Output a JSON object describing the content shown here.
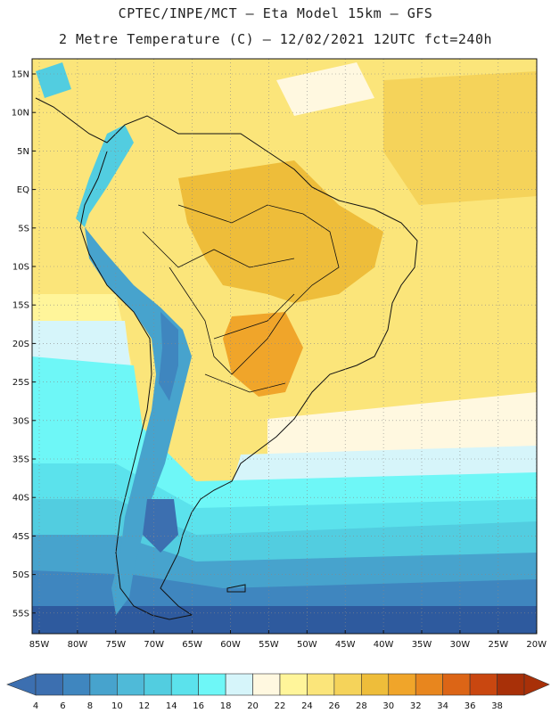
{
  "title_line1": "CPTEC/INPE/MCT –  Eta Model 15km – GFS",
  "title_line2": "2 Metre Temperature (C) – 12/02/2021 12UTC fct=240h",
  "lat_labels": [
    "15N",
    "10N",
    "5N",
    "EQ",
    "5S",
    "10S",
    "15S",
    "20S",
    "25S",
    "30S",
    "35S",
    "40S",
    "45S",
    "50S",
    "55S"
  ],
  "lon_labels": [
    "85W",
    "80W",
    "75W",
    "70W",
    "65W",
    "60W",
    "55W",
    "50W",
    "45W",
    "40W",
    "35W",
    "30W",
    "25W",
    "20W"
  ],
  "colorbar": {
    "ticks": [
      "4",
      "6",
      "8",
      "10",
      "12",
      "14",
      "16",
      "18",
      "20",
      "22",
      "24",
      "26",
      "28",
      "30",
      "32",
      "34",
      "36",
      "38"
    ],
    "colors": [
      "#3c6fb0",
      "#3f86bf",
      "#47a3cd",
      "#4fbad8",
      "#52cde0",
      "#5be2ec",
      "#6ef7f7",
      "#d6f5fa",
      "#fff8e0",
      "#fff59a",
      "#fbe57a",
      "#f5d35a",
      "#eebd3a",
      "#f0a52a",
      "#e8861e",
      "#dc6516",
      "#c94710",
      "#a83008"
    ]
  },
  "map": {
    "regions": {
      "ocean_south_deep": "#2e5a9e",
      "ocean_south_mid": "#3f86bf",
      "ocean_south": "#4fbad8",
      "ocean_cyan": "#5be2ec",
      "ocean_light": "#d6f5fa",
      "warm_land": "#fbe57a",
      "hot_land": "#eebd3a",
      "hottest": "#f0a52a",
      "ocean_warm": "#f5d35a",
      "andes": "#4fbad8",
      "andes_high": "#3f86bf"
    }
  }
}
